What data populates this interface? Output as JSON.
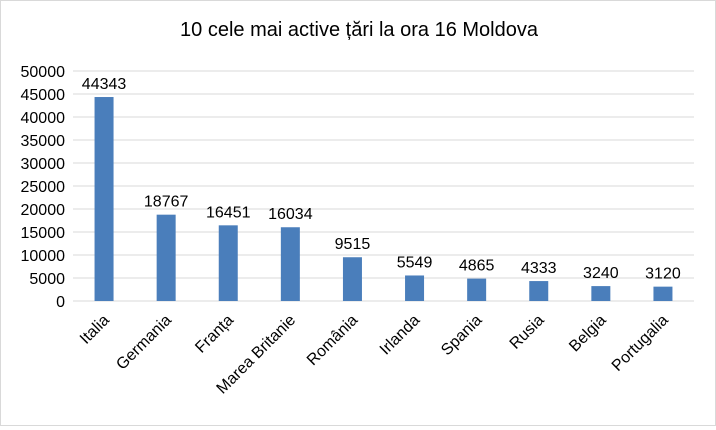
{
  "chart_data": {
    "type": "bar",
    "title": "10 cele mai active țări la ora 16 Moldova",
    "categories": [
      "Italia",
      "Germania",
      "Franța",
      "Marea Britanie",
      "România",
      "Irlanda",
      "Spania",
      "Rusia",
      "Belgia",
      "Portugalia"
    ],
    "values": [
      44343,
      18767,
      16451,
      16034,
      9515,
      5549,
      4865,
      4333,
      3240,
      3120
    ],
    "ylim": [
      0,
      50000
    ],
    "yticks": [
      "0",
      "5000",
      "10000",
      "15000",
      "20000",
      "25000",
      "30000",
      "35000",
      "40000",
      "45000",
      "50000"
    ],
    "bar_color": "#4a7ebb",
    "grid": true,
    "legend": "none",
    "data_labels": true
  }
}
